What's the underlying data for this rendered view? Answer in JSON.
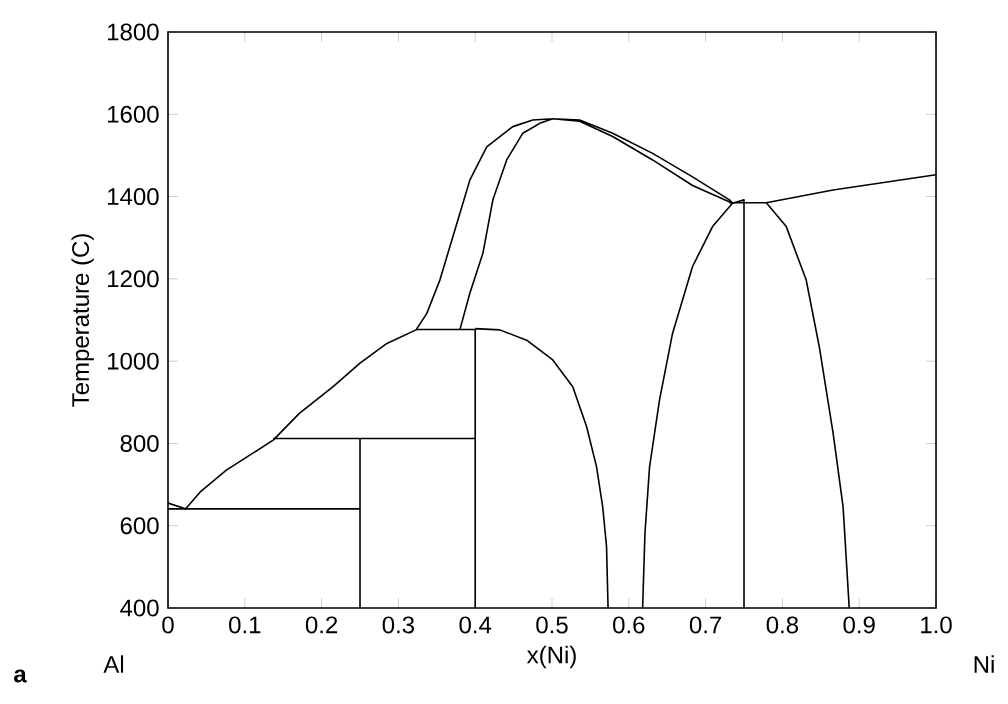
{
  "chart_data": {
    "type": "line",
    "xlabel": "x(Ni)",
    "ylabel": "Temperature (C)",
    "annotations": [
      "a",
      "Al",
      "Ni"
    ],
    "xlim": [
      0,
      1
    ],
    "ylim": [
      400,
      1800
    ],
    "xticks": [
      0,
      0.1,
      0.2,
      0.3,
      0.4,
      0.5,
      0.6,
      0.7,
      0.8,
      0.9,
      {
        "value": 1,
        "label": "1.0"
      }
    ],
    "yticks": [
      400,
      600,
      800,
      1000,
      1200,
      1400,
      1600,
      1800
    ],
    "marker": "none",
    "line_style": "solid",
    "grid": false,
    "series": [
      {
        "color": "#000000",
        "x": [
          0,
          0.023,
          0.042,
          0.076,
          0.137,
          0.171,
          0.215,
          0.25,
          0.285,
          0.323,
          0.337,
          0.354,
          0.38,
          0.393,
          0.415,
          0.449,
          0.475,
          0.501,
          0.536,
          0.579,
          0.631,
          0.683,
          0.731,
          0.735,
          0.683,
          0.631,
          0.579,
          0.536,
          0.501,
          0.484,
          0.462,
          0.441,
          0.423,
          0.41,
          0.393,
          0.38
        ],
        "values": [
          655,
          641,
          682,
          735,
          808,
          873,
          938,
          995,
          1043,
          1076,
          1116,
          1197,
          1359,
          1440,
          1521,
          1570,
          1586,
          1589,
          1586,
          1554,
          1505,
          1448,
          1392,
          1384,
          1427,
          1489,
          1546,
          1583,
          1589,
          1578,
          1554,
          1489,
          1392,
          1262,
          1165,
          1076
        ]
      },
      {
        "color": "#000000",
        "x": [
          0,
          0.25,
          null,
          0.25,
          0.25,
          null,
          0.137,
          0.4,
          null,
          0.323,
          0.4,
          0.4,
          null,
          0.4,
          0.432,
          0.467,
          0.501,
          0.527,
          0.545,
          0.558,
          0.566,
          0.571,
          0.573
        ],
        "values": [
          641,
          641,
          null,
          400,
          812,
          null,
          812,
          812,
          null,
          1077,
          1077,
          400,
          null,
          1079,
          1076,
          1051,
          1003,
          938,
          841,
          743,
          646,
          549,
          400
        ]
      },
      {
        "color": "#000000",
        "x": [
          0.618,
          0.621,
          0.627,
          0.64,
          0.657,
          0.683,
          0.709,
          0.735,
          0.75,
          0.75
        ],
        "values": [
          400,
          581,
          743,
          906,
          1068,
          1230,
          1327,
          1384,
          1392,
          400
        ]
      },
      {
        "color": "#000000",
        "x": [
          1.0,
          0.866,
          0.779,
          0.731,
          null,
          0.779,
          0.805,
          0.831,
          0.848,
          0.866,
          0.879,
          0.887
        ],
        "values": [
          1453,
          1416,
          1385,
          1385,
          null,
          1385,
          1327,
          1197,
          1035,
          825,
          646,
          400
        ]
      }
    ]
  }
}
